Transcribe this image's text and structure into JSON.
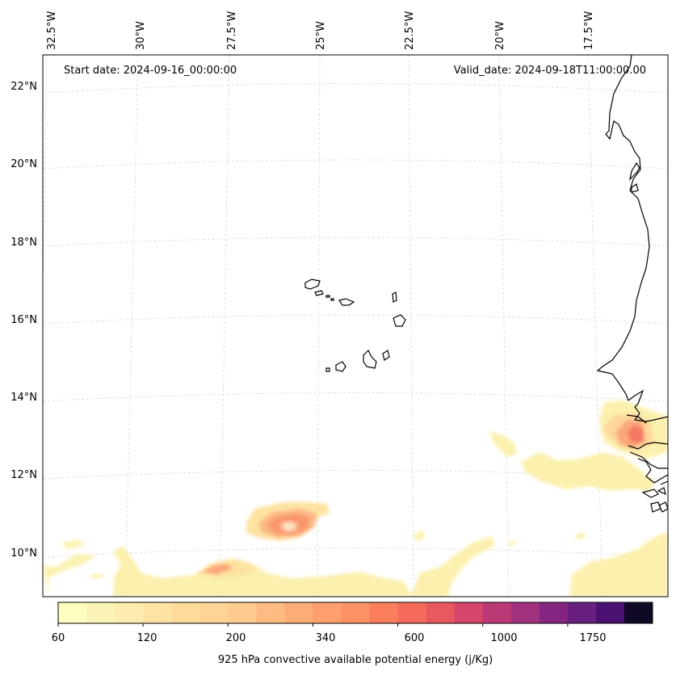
{
  "header": {
    "start_date": "Start date: 2024-09-16_00:00:00",
    "valid_date": "Valid_date: 2024-09-18T11:00:00.00"
  },
  "map": {
    "longitude_labels": [
      "32.5°W",
      "30°W",
      "27.5°W",
      "25°W",
      "22.5°W",
      "20°W",
      "17.5°W"
    ],
    "latitude_labels": [
      "22°N",
      "20°N",
      "18°N",
      "16°N",
      "14°N",
      "12°N",
      "10°N"
    ],
    "gridlines": true,
    "coastline_color": "#000000"
  },
  "colorbar": {
    "label": "925 hPa convective available potential energy (j/Kg)",
    "tick_labels": [
      "60",
      "120",
      "200",
      "340",
      "600",
      "1000",
      "1750"
    ],
    "colors": [
      "#fcfdbf",
      "#fcf4b6",
      "#fcecad",
      "#fde4a4",
      "#fddb9b",
      "#fed395",
      "#feca8d",
      "#febc82",
      "#feac76",
      "#fe9f6d",
      "#fd9266",
      "#fa7d5e",
      "#f56b5c",
      "#e9585f",
      "#d6456c",
      "#bc3978",
      "#a0317e",
      "#842681",
      "#681f80",
      "#4c1273",
      "#0f0926"
    ],
    "colormap": "magma_r"
  }
}
